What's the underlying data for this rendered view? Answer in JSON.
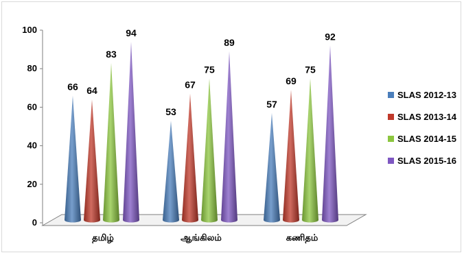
{
  "chart_data": {
    "type": "bar",
    "categories": [
      "தமிழ்",
      "ஆங்கிலம்",
      "கணிதம்"
    ],
    "series": [
      {
        "name": "SLAS 2012-13",
        "color": "#4a7ebb",
        "values": [
          66,
          53,
          57
        ]
      },
      {
        "name": "SLAS 2013-14",
        "color": "#c0392b",
        "values": [
          64,
          67,
          69
        ]
      },
      {
        "name": "SLAS 2014-15",
        "color": "#8cc63f",
        "values": [
          83,
          75,
          75
        ]
      },
      {
        "name": "SLAS 2015-16",
        "color": "#7e57c2",
        "values": [
          94,
          89,
          92
        ]
      }
    ],
    "yticks": [
      0,
      20,
      40,
      60,
      80,
      100
    ],
    "ylim": [
      0,
      100
    ],
    "bar_shape": "cone",
    "legend_position": "right",
    "grid": false
  }
}
